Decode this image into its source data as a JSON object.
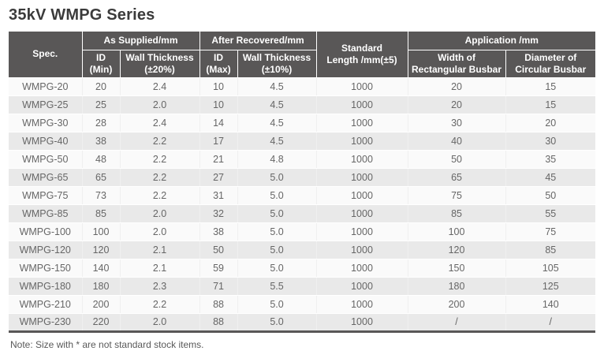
{
  "title": "35kV WMPG Series",
  "note": "Note: Size with * are not standard stock items.",
  "colors": {
    "header_bg": "#595757",
    "header_text": "#ffffff",
    "row_light": "#fafafa",
    "row_dark": "#e9e9e9",
    "body_text": "#666666",
    "title_text": "#3b3b3b",
    "bottom_border": "#595757"
  },
  "header": {
    "spec": "Spec.",
    "as_supplied": "As Supplied/mm",
    "after_recovered": "After Recovered/mm",
    "standard_length_line1": "Standard",
    "standard_length_line2": "Length /mm(±5)",
    "application": "Application /mm",
    "id_min_line1": "ID",
    "id_min_line2": "(Min)",
    "wall_20_line1": "Wall Thickness",
    "wall_20_line2": "(±20%)",
    "id_max_line1": "ID",
    "id_max_line2": "(Max)",
    "wall_10_line1": "Wall Thickness",
    "wall_10_line2": "(±10%)",
    "width_rect_line1": "Width of",
    "width_rect_line2": "Rectangular Busbar",
    "dia_circ_line1": "Diameter of",
    "dia_circ_line2": "Circular Busbar"
  },
  "rows": [
    [
      "WMPG-20",
      "20",
      "2.4",
      "10",
      "4.5",
      "1000",
      "20",
      "15"
    ],
    [
      "WMPG-25",
      "25",
      "2.0",
      "10",
      "4.5",
      "1000",
      "20",
      "15"
    ],
    [
      "WMPG-30",
      "28",
      "2.4",
      "14",
      "4.5",
      "1000",
      "30",
      "20"
    ],
    [
      "WMPG-40",
      "38",
      "2.2",
      "17",
      "4.5",
      "1000",
      "40",
      "30"
    ],
    [
      "WMPG-50",
      "48",
      "2.2",
      "21",
      "4.8",
      "1000",
      "50",
      "35"
    ],
    [
      "WMPG-65",
      "65",
      "2.2",
      "27",
      "5.0",
      "1000",
      "65",
      "45"
    ],
    [
      "WMPG-75",
      "73",
      "2.2",
      "31",
      "5.0",
      "1000",
      "75",
      "50"
    ],
    [
      "WMPG-85",
      "85",
      "2.0",
      "32",
      "5.0",
      "1000",
      "85",
      "55"
    ],
    [
      "WMPG-100",
      "100",
      "2.0",
      "38",
      "5.0",
      "1000",
      "100",
      "75"
    ],
    [
      "WMPG-120",
      "120",
      "2.1",
      "50",
      "5.0",
      "1000",
      "120",
      "85"
    ],
    [
      "WMPG-150",
      "140",
      "2.1",
      "59",
      "5.0",
      "1000",
      "150",
      "105"
    ],
    [
      "WMPG-180",
      "180",
      "2.3",
      "71",
      "5.5",
      "1000",
      "180",
      "125"
    ],
    [
      "WMPG-210",
      "200",
      "2.2",
      "88",
      "5.0",
      "1000",
      "200",
      "140"
    ],
    [
      "WMPG-230",
      "220",
      "2.0",
      "88",
      "5.0",
      "1000",
      "/",
      "/"
    ]
  ]
}
